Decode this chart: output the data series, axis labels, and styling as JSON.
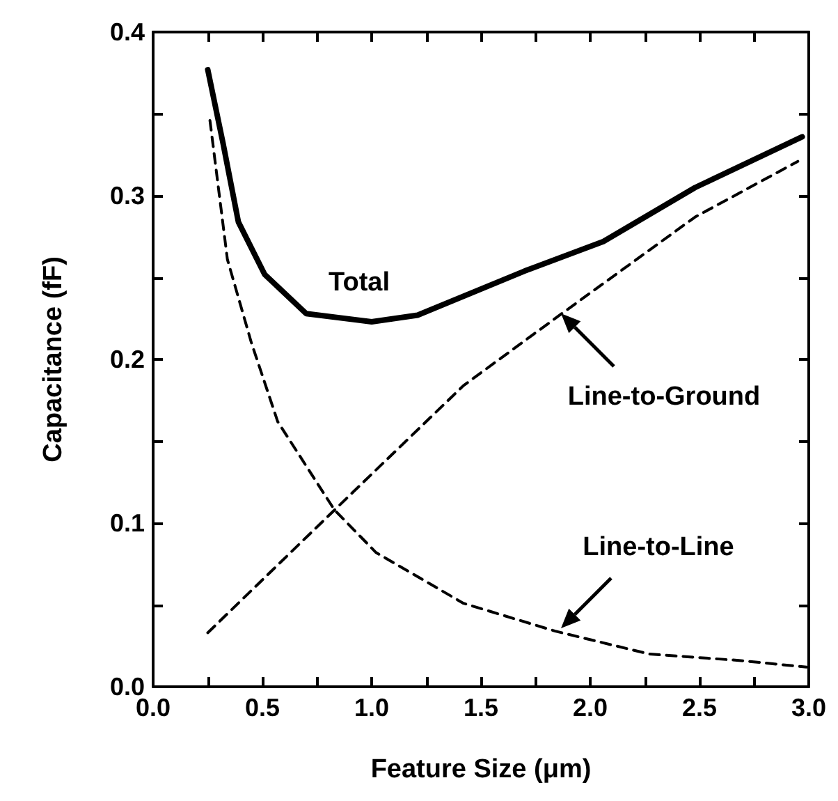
{
  "chart_data": {
    "type": "line",
    "xlabel": "Feature Size (μm)",
    "ylabel": "Capacitance (fF)",
    "xlim": [
      0,
      3
    ],
    "ylim": [
      0,
      0.4
    ],
    "xticks": [
      {
        "value": 0,
        "label": "0.0"
      },
      {
        "value": 0.25,
        "label": null
      },
      0.5,
      {
        "value": 0.75,
        "label": null
      },
      {
        "value": 1,
        "label": "1.0"
      },
      {
        "value": 1.25,
        "label": null
      },
      1.5,
      {
        "value": 1.75,
        "label": null
      },
      {
        "value": 2,
        "label": "2.0"
      },
      {
        "value": 2.25,
        "label": null
      },
      2.5,
      {
        "value": 2.75,
        "label": null
      },
      {
        "value": 3,
        "label": "3.0"
      }
    ],
    "yticks": [
      {
        "value": 0,
        "label": "0.0"
      },
      {
        "value": 0.05,
        "label": null
      },
      0.1,
      {
        "value": 0.15,
        "label": null
      },
      0.2,
      {
        "value": 0.25,
        "label": null
      },
      0.3,
      {
        "value": 0.35,
        "label": null
      },
      0.4
    ],
    "grid": false,
    "marker": "none",
    "series": [
      {
        "color": "#000000",
        "line_style": "solid",
        "x": [
          0.25,
          0.32,
          0.39,
          0.51,
          0.7,
          1.0,
          1.21,
          1.7,
          2.06,
          2.48,
          2.97
        ],
        "values": [
          0.377,
          0.332,
          0.284,
          0.252,
          0.228,
          0.223,
          0.227,
          0.254,
          0.272,
          0.305,
          0.336
        ]
      },
      {
        "color": "#000000",
        "line_style": "dashed",
        "x": [
          0.25,
          0.83,
          1.42,
          1.87,
          2.48,
          2.95
        ],
        "values": [
          0.033,
          0.108,
          0.184,
          0.228,
          0.287,
          0.321
        ]
      },
      {
        "color": "#000000",
        "line_style": "dashed",
        "x": [
          0.26,
          0.34,
          0.45,
          0.57,
          0.83,
          1.02,
          1.42,
          1.84,
          2.27,
          2.69,
          2.99
        ],
        "values": [
          0.346,
          0.261,
          0.21,
          0.162,
          0.108,
          0.082,
          0.051,
          0.034,
          0.02,
          0.016,
          0.012
        ]
      }
    ],
    "annotations": [
      "Total",
      "Line-to-Ground",
      "Line-to-Line"
    ]
  }
}
